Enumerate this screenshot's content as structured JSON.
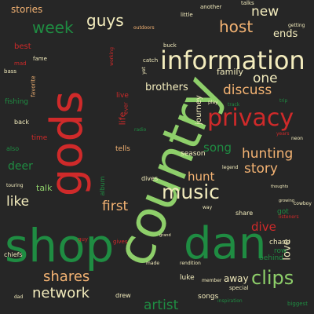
{
  "background": "#262626",
  "palette": {
    "lime": "#8ecf6a",
    "green": "#1f8c42",
    "red": "#cf2a2a",
    "peach": "#f4b373",
    "cream": "#f3ecbd"
  },
  "words": [
    {
      "text": "country",
      "color": "#8ecf6a"
    },
    {
      "text": "shop",
      "color": "#1f8c42"
    },
    {
      "text": "dan",
      "color": "#1f8c42"
    },
    {
      "text": "gods",
      "color": "#cf2a2a"
    },
    {
      "text": "information",
      "color": "#f3ecbd"
    },
    {
      "text": "privacy",
      "color": "#cf2a2a"
    },
    {
      "text": "music",
      "color": "#f3ecbd"
    },
    {
      "text": "clips",
      "color": "#8ecf6a"
    },
    {
      "text": "network",
      "color": "#f3ecbd"
    },
    {
      "text": "shares",
      "color": "#f4b373"
    },
    {
      "text": "week",
      "color": "#1f8c42"
    },
    {
      "text": "guys",
      "color": "#f3ecbd"
    },
    {
      "text": "host",
      "color": "#f4b373"
    },
    {
      "text": "new",
      "color": "#f3ecbd"
    },
    {
      "text": "one",
      "color": "#f3ecbd"
    },
    {
      "text": "discuss",
      "color": "#f4b373"
    },
    {
      "text": "hunting",
      "color": "#f4b373"
    },
    {
      "text": "story",
      "color": "#f4b373"
    },
    {
      "text": "song",
      "color": "#1f8c42"
    },
    {
      "text": "hunt",
      "color": "#f4b373"
    },
    {
      "text": "like",
      "color": "#f3ecbd"
    },
    {
      "text": "first",
      "color": "#f4b373"
    },
    {
      "text": "dive",
      "color": "#cf2a2a"
    },
    {
      "text": "artist",
      "color": "#1f8c42"
    },
    {
      "text": "ends",
      "color": "#f3ecbd"
    },
    {
      "text": "deer",
      "color": "#1f8c42"
    },
    {
      "text": "love",
      "color": "#f3ecbd"
    },
    {
      "text": "family",
      "color": "#f3ecbd"
    },
    {
      "text": "brothers",
      "color": "#f3ecbd"
    },
    {
      "text": "stories",
      "color": "#f4b373"
    },
    {
      "text": "away",
      "color": "#f3ecbd"
    },
    {
      "text": "talk",
      "color": "#8ecf6a"
    },
    {
      "text": "journey",
      "color": "#f3ecbd"
    },
    {
      "text": "life",
      "color": "#cf2a2a"
    },
    {
      "text": "best",
      "color": "#cf2a2a"
    },
    {
      "text": "live",
      "color": "#cf2a2a"
    },
    {
      "text": "chase",
      "color": "#f3ecbd"
    },
    {
      "text": "behind",
      "color": "#1f8c42"
    },
    {
      "text": "row",
      "color": "#1f8c42"
    },
    {
      "text": "songs",
      "color": "#f3ecbd"
    },
    {
      "text": "season",
      "color": "#f3ecbd"
    },
    {
      "text": "tells",
      "color": "#f4b373"
    },
    {
      "text": "got",
      "color": "#1f8c42"
    },
    {
      "text": "drew",
      "color": "#f3ecbd"
    },
    {
      "text": "luke",
      "color": "#f3ecbd"
    },
    {
      "text": "share",
      "color": "#f3ecbd"
    },
    {
      "text": "dives",
      "color": "#f3ecbd"
    },
    {
      "text": "album",
      "color": "#1f8c42"
    },
    {
      "text": "fishing",
      "color": "#1f8c42"
    },
    {
      "text": "back",
      "color": "#f3ecbd"
    },
    {
      "text": "time",
      "color": "#cf2a2a"
    },
    {
      "text": "also",
      "color": "#1f8c42"
    },
    {
      "text": "chiefs",
      "color": "#f3ecbd"
    },
    {
      "text": "buck",
      "color": "#f3ecbd"
    },
    {
      "text": "catch",
      "color": "#f3ecbd"
    },
    {
      "text": "bass",
      "color": "#f3ecbd"
    },
    {
      "text": "mad",
      "color": "#cf2a2a"
    },
    {
      "text": "guy",
      "color": "#cf2a2a"
    },
    {
      "text": "gives",
      "color": "#cf2a2a"
    },
    {
      "text": "touring",
      "color": "#f3ecbd"
    },
    {
      "text": "made",
      "color": "#f3ecbd"
    },
    {
      "text": "special",
      "color": "#f3ecbd"
    },
    {
      "text": "little",
      "color": "#f3ecbd"
    },
    {
      "text": "another",
      "color": "#f3ecbd"
    },
    {
      "text": "talks",
      "color": "#f3ecbd"
    },
    {
      "text": "favorite",
      "color": "#f4b373"
    },
    {
      "text": "fame",
      "color": "#f3ecbd"
    },
    {
      "text": "working",
      "color": "#cf2a2a"
    },
    {
      "text": "radio",
      "color": "#1f8c42"
    },
    {
      "text": "ever",
      "color": "#cf2a2a"
    },
    {
      "text": "outdoors",
      "color": "#f4b373"
    },
    {
      "text": "play",
      "color": "#f3ecbd"
    },
    {
      "text": "biggest",
      "color": "#1f8c42"
    },
    {
      "text": "member",
      "color": "#f3ecbd"
    },
    {
      "text": "legend",
      "color": "#f3ecbd"
    },
    {
      "text": "way",
      "color": "#f3ecbd"
    },
    {
      "text": "track",
      "color": "#1f8c42"
    },
    {
      "text": "years",
      "color": "#cf2a2a"
    },
    {
      "text": "cowboy",
      "color": "#f3ecbd"
    },
    {
      "text": "listeners",
      "color": "#cf2a2a"
    },
    {
      "text": "getting",
      "color": "#f3ecbd"
    },
    {
      "text": "inspiration",
      "color": "#1f8c42"
    },
    {
      "text": "yet",
      "color": "#f3ecbd"
    },
    {
      "text": "neon",
      "color": "#f3ecbd"
    },
    {
      "text": "trip",
      "color": "#1f8c42"
    },
    {
      "text": "growing",
      "color": "#f3ecbd"
    },
    {
      "text": "thoughts",
      "color": "#f3ecbd"
    },
    {
      "text": "dad",
      "color": "#f3ecbd"
    },
    {
      "text": "grand",
      "color": "#f3ecbd"
    },
    {
      "text": "rendition",
      "color": "#f3ecbd"
    }
  ]
}
